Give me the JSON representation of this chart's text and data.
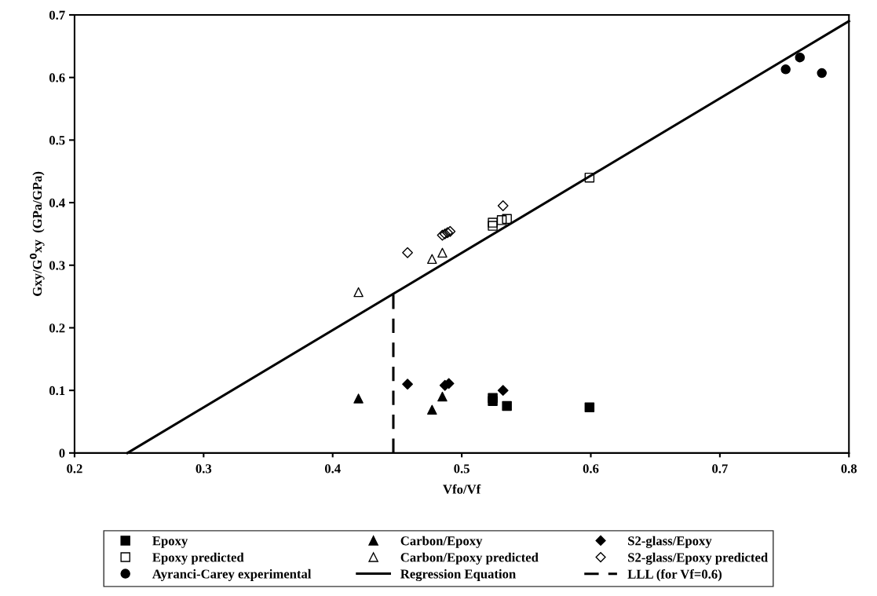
{
  "chart_data": {
    "type": "scatter",
    "xlabel": "Vfo/Vf",
    "ylabel": "Gxy/G$^{0}$xy  (GPa/GPa)",
    "xlim": [
      0.2,
      0.8
    ],
    "xticks": [
      0.2,
      0.3,
      0.4,
      0.5,
      0.6,
      0.7,
      0.8
    ],
    "ylim": [
      0,
      0.7
    ],
    "yticks": [
      0,
      0.1,
      0.2,
      0.3,
      0.4,
      0.5,
      0.6,
      0.7
    ],
    "grid": false,
    "legend": "bottom",
    "series": [
      {
        "name": "Epoxy",
        "type": "scatter",
        "marker": "square",
        "color": "#000000",
        "x": [
          0.524,
          0.524,
          0.535,
          0.599
        ],
        "values": [
          0.088,
          0.083,
          0.075,
          0.073
        ]
      },
      {
        "name": "Carbon/Epoxy",
        "type": "scatter",
        "marker": "triangle",
        "color": "#000000",
        "x": [
          0.42,
          0.477,
          0.485
        ],
        "values": [
          0.087,
          0.069,
          0.09
        ]
      },
      {
        "name": "S2-glass/Epoxy",
        "type": "scatter",
        "marker": "diamond",
        "color": "#000000",
        "x": [
          0.458,
          0.487,
          0.49,
          0.532
        ],
        "values": [
          0.11,
          0.108,
          0.111,
          0.1
        ]
      },
      {
        "name": "Epoxy predicted",
        "type": "scatter",
        "marker": "square-open",
        "color": "#000000",
        "x": [
          0.524,
          0.524,
          0.531,
          0.535,
          0.599
        ],
        "values": [
          0.368,
          0.363,
          0.372,
          0.374,
          0.44
        ]
      },
      {
        "name": "Carbon/Epoxy predicted",
        "type": "scatter",
        "marker": "triangle-open",
        "color": "#000000",
        "x": [
          0.42,
          0.477,
          0.485
        ],
        "values": [
          0.257,
          0.31,
          0.32
        ]
      },
      {
        "name": "S2-glass/Epoxy predicted",
        "type": "scatter",
        "marker": "diamond-open",
        "color": "#000000",
        "x": [
          0.458,
          0.485,
          0.487,
          0.489,
          0.491,
          0.532
        ],
        "values": [
          0.32,
          0.348,
          0.35,
          0.352,
          0.354,
          0.395
        ]
      },
      {
        "name": "Ayranci-Carey experimental",
        "type": "scatter",
        "marker": "circle",
        "color": "#000000",
        "x": [
          0.751,
          0.762,
          0.779
        ],
        "values": [
          0.613,
          0.632,
          0.607
        ]
      },
      {
        "name": "Regression Equation",
        "type": "line",
        "marker": "none",
        "line_style": "solid",
        "color": "#000000",
        "x": [
          0.241,
          0.8
        ],
        "values": [
          0,
          0.69
        ]
      },
      {
        "name": "LLL (for Vf=0.6)",
        "type": "line",
        "marker": "none",
        "line_style": "dashed",
        "color": "#000000",
        "x": [
          0.447,
          0.447
        ],
        "values": [
          0.253,
          0
        ]
      }
    ]
  }
}
